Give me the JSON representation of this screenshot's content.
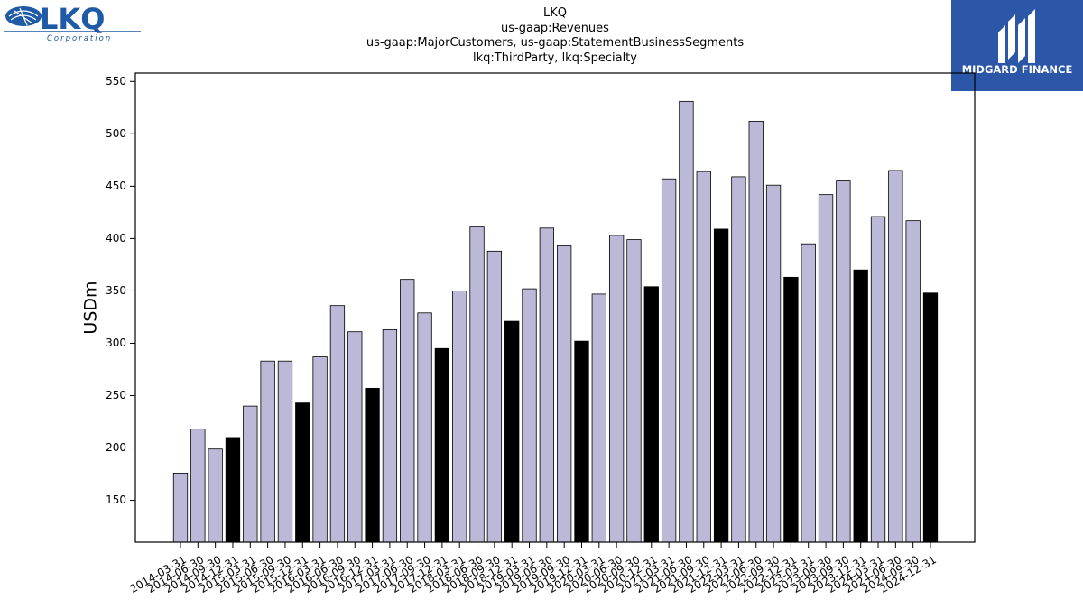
{
  "branding": {
    "left_logo_text": "LKQ",
    "left_logo_subtext": "Corporation",
    "right_logo_text": "MIDGARD FINANCE",
    "accent": "#2c56a8"
  },
  "chart_data": {
    "type": "bar",
    "title_lines": [
      "LKQ",
      "us-gaap:Revenues",
      "us-gaap:MajorCustomers, us-gaap:StatementBusinessSegments",
      "lkq:ThirdParty, lkq:Specialty"
    ],
    "xlabel": "",
    "ylabel": "USDm",
    "ylim": [
      110,
      558
    ],
    "yticks": [
      150,
      200,
      250,
      300,
      350,
      400,
      450,
      500,
      550
    ],
    "grid": false,
    "colors": {
      "quarter": "#bcb8d8",
      "year_end": "#000000",
      "edge": "#000000"
    },
    "categories": [
      "2014-03-31",
      "2014-06-30",
      "2014-09-30",
      "2014-12-31",
      "2015-03-31",
      "2015-06-30",
      "2015-09-30",
      "2015-12-31",
      "2016-03-31",
      "2016-06-30",
      "2016-09-30",
      "2016-12-31",
      "2017-03-31",
      "2017-06-30",
      "2017-09-30",
      "2017-12-31",
      "2018-03-31",
      "2018-06-30",
      "2018-09-30",
      "2018-12-31",
      "2019-03-31",
      "2019-06-30",
      "2019-09-30",
      "2019-12-31",
      "2020-03-31",
      "2020-06-30",
      "2020-09-30",
      "2020-12-31",
      "2021-03-31",
      "2021-06-30",
      "2021-09-30",
      "2021-12-31",
      "2022-03-31",
      "2022-06-30",
      "2022-09-30",
      "2022-12-31",
      "2023-03-31",
      "2023-06-30",
      "2023-09-30",
      "2023-12-31",
      "2024-03-31",
      "2024-06-30",
      "2024-09-30",
      "2024-12-31"
    ],
    "values": [
      176,
      218,
      199,
      210,
      240,
      283,
      283,
      243,
      287,
      336,
      311,
      257,
      313,
      361,
      329,
      295,
      350,
      411,
      388,
      321,
      352,
      410,
      393,
      302,
      347,
      403,
      399,
      354,
      457,
      531,
      464,
      409,
      459,
      512,
      451,
      363,
      395,
      442,
      455,
      370,
      421,
      465,
      417,
      348
    ]
  }
}
